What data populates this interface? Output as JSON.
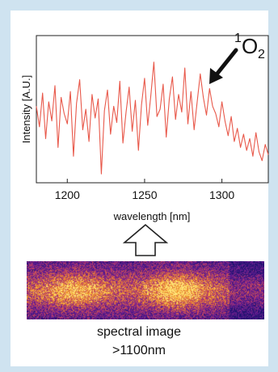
{
  "chart_data": {
    "type": "line",
    "xlabel": "wavelength [nm]",
    "ylabel": "Intensity [A.U.]",
    "xlim": [
      1180,
      1330
    ],
    "x_ticks": [
      1200,
      1250,
      1300
    ],
    "y_ticks_visible": false,
    "grid": false,
    "line_color": "#e8584a",
    "annotation": {
      "text_base": "O",
      "superscript": "1",
      "subscript": "2",
      "points_to_x": 1290
    },
    "series": [
      {
        "x": [
          1180,
          1182,
          1184,
          1186,
          1188,
          1190,
          1192,
          1194,
          1196,
          1198,
          1200,
          1202,
          1204,
          1206,
          1208,
          1210,
          1212,
          1214,
          1216,
          1218,
          1220,
          1222,
          1224,
          1226,
          1228,
          1230,
          1232,
          1234,
          1236,
          1238,
          1240,
          1242,
          1244,
          1246,
          1248,
          1250,
          1252,
          1254,
          1256,
          1258,
          1260,
          1262,
          1264,
          1266,
          1268,
          1270,
          1272,
          1274,
          1276,
          1278,
          1280,
          1282,
          1284,
          1286,
          1288,
          1290,
          1292,
          1294,
          1296,
          1298,
          1300,
          1302,
          1304,
          1306,
          1308,
          1310,
          1312,
          1314,
          1316,
          1318,
          1320,
          1322,
          1324,
          1326,
          1328,
          1330
        ],
        "y": [
          0.52,
          0.38,
          0.61,
          0.3,
          0.55,
          0.42,
          0.66,
          0.24,
          0.58,
          0.47,
          0.4,
          0.62,
          0.18,
          0.54,
          0.7,
          0.36,
          0.5,
          0.28,
          0.6,
          0.44,
          0.57,
          0.06,
          0.49,
          0.63,
          0.33,
          0.52,
          0.41,
          0.69,
          0.27,
          0.48,
          0.65,
          0.35,
          0.56,
          0.22,
          0.53,
          0.71,
          0.39,
          0.59,
          0.82,
          0.45,
          0.5,
          0.67,
          0.31,
          0.57,
          0.72,
          0.43,
          0.6,
          0.48,
          0.78,
          0.4,
          0.62,
          0.36,
          0.55,
          0.74,
          0.58,
          0.46,
          0.64,
          0.52,
          0.47,
          0.38,
          0.55,
          0.42,
          0.32,
          0.45,
          0.28,
          0.37,
          0.24,
          0.33,
          0.22,
          0.3,
          0.18,
          0.34,
          0.21,
          0.15,
          0.26,
          0.19
        ]
      }
    ]
  },
  "image_caption": {
    "line1": "spectral image",
    "line2": ">1100nm"
  }
}
